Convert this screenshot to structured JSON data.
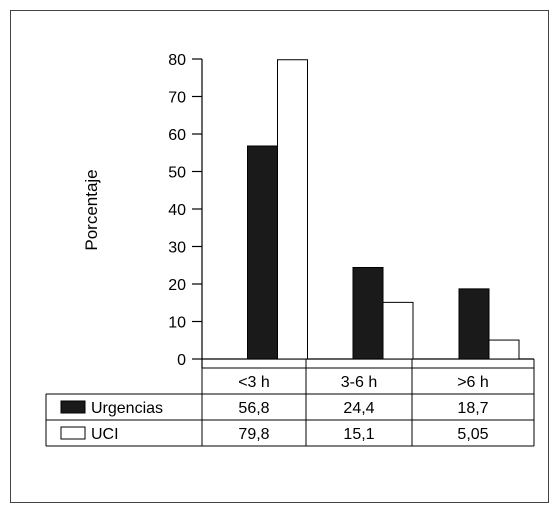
{
  "chart_data": {
    "type": "bar",
    "title": "",
    "xlabel": "",
    "ylabel": "Porcentaje",
    "ylim": [
      0,
      80
    ],
    "y_ticks": [
      0,
      10,
      20,
      30,
      40,
      50,
      60,
      70,
      80
    ],
    "categories": [
      "<3 h",
      "3-6 h",
      ">6 h"
    ],
    "series": [
      {
        "name": "Urgencias",
        "values": [
          56.8,
          24.4,
          18.7
        ],
        "value_labels": [
          "56,8",
          "24,4",
          "18,7"
        ],
        "fill": "#1a1a1a"
      },
      {
        "name": "UCI",
        "values": [
          79.8,
          15.1,
          5.05
        ],
        "value_labels": [
          "79,8",
          "15,1",
          "5,05"
        ],
        "fill": "#ffffff"
      }
    ],
    "grid": false,
    "legend": "data-table-below"
  }
}
